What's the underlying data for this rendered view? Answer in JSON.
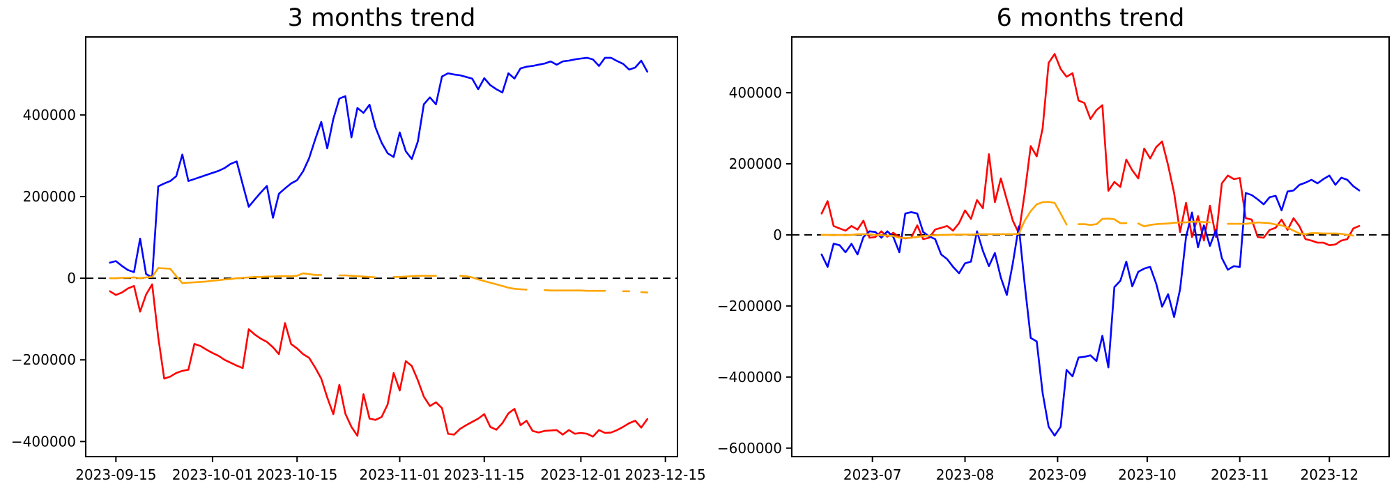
{
  "page": {
    "background": "#ffffff",
    "left_chart_title": "3 months trend",
    "right_chart_title": "6 months trend"
  },
  "colors": {
    "blue_series": "#0000ff",
    "red_series": "#ff0000",
    "orange_series": "#ffa500",
    "zero_line": "#000000",
    "axis": "#000000",
    "tick_text": "#000000"
  },
  "chart_data": [
    {
      "title": "3 months trend",
      "type": "line",
      "grid": false,
      "legend": "none",
      "x_start": "2023-09-14",
      "x_step_days": 1,
      "xlim": [
        "2023-09-10",
        "2023-12-17"
      ],
      "ylim": [
        -437000,
        591000
      ],
      "zero_line": {
        "value": 0,
        "style": "dashed",
        "color": "#000000"
      },
      "x_ticks": [
        {
          "date": "2023-09-15",
          "label": "2023-09-15"
        },
        {
          "date": "2023-10-01",
          "label": "2023-10-01"
        },
        {
          "date": "2023-10-15",
          "label": "2023-10-15"
        },
        {
          "date": "2023-11-01",
          "label": "2023-11-01"
        },
        {
          "date": "2023-11-15",
          "label": "2023-11-15"
        },
        {
          "date": "2023-12-01",
          "label": "2023-12-01"
        },
        {
          "date": "2023-12-15",
          "label": "2023-12-15"
        }
      ],
      "y_ticks": [
        {
          "value": -400000,
          "label": "−400000"
        },
        {
          "value": -200000,
          "label": "−200000"
        },
        {
          "value": 0,
          "label": "0"
        },
        {
          "value": 200000,
          "label": "200000"
        },
        {
          "value": 400000,
          "label": "400000"
        }
      ],
      "series": [
        {
          "name": "blue",
          "color_key": "blue_series",
          "values": [
            38000,
            42000,
            30000,
            20000,
            15000,
            97000,
            10000,
            2000,
            225000,
            232000,
            238000,
            250000,
            303000,
            238000,
            243000,
            248000,
            253000,
            258000,
            263000,
            270000,
            280000,
            286000,
            230000,
            175000,
            193000,
            210000,
            226000,
            148000,
            207000,
            220000,
            232000,
            240000,
            262000,
            294000,
            340000,
            383000,
            318000,
            390000,
            440000,
            446000,
            345000,
            417000,
            405000,
            425000,
            369000,
            332000,
            306000,
            297000,
            357000,
            311000,
            292000,
            335000,
            426000,
            443000,
            426000,
            494000,
            502000,
            499000,
            497000,
            493000,
            489000,
            463000,
            490000,
            473000,
            463000,
            455000,
            502000,
            489000,
            514000,
            518000,
            520000,
            523000,
            526000,
            531000,
            523000,
            531000,
            533000,
            536000,
            538000,
            540000,
            536000,
            520000,
            540000,
            540000,
            532000,
            525000,
            511000,
            516000,
            533000,
            506000
          ]
        },
        {
          "name": "red",
          "color_key": "red_series",
          "values": [
            -32000,
            -41000,
            -35000,
            -25000,
            -19000,
            -82000,
            -40000,
            -15000,
            -144000,
            -246000,
            -241000,
            -232000,
            -227000,
            -224000,
            -161000,
            -166000,
            -175000,
            -183000,
            -190000,
            -200000,
            -207000,
            -214000,
            -220000,
            -125000,
            -138000,
            -148000,
            -156000,
            -169000,
            -186000,
            -110000,
            -161000,
            -172000,
            -186000,
            -195000,
            -219000,
            -246000,
            -292000,
            -333000,
            -261000,
            -332000,
            -364000,
            -386000,
            -284000,
            -344000,
            -347000,
            -340000,
            -309000,
            -232000,
            -275000,
            -203000,
            -215000,
            -250000,
            -290000,
            -313000,
            -304000,
            -318000,
            -381000,
            -383000,
            -369000,
            -360000,
            -352000,
            -344000,
            -333000,
            -364000,
            -371000,
            -355000,
            -331000,
            -320000,
            -360000,
            -349000,
            -374000,
            -378000,
            -374000,
            -373000,
            -372000,
            -383000,
            -372000,
            -381000,
            -379000,
            -381000,
            -388000,
            -372000,
            -379000,
            -378000,
            -372000,
            -364000,
            -355000,
            -349000,
            -366000,
            -345000
          ]
        },
        {
          "name": "orange",
          "color_key": "orange_series",
          "values": [
            0,
            0,
            1000,
            1000,
            2000,
            0,
            2000,
            3000,
            25000,
            24000,
            23000,
            5000,
            -12000,
            -11000,
            -10000,
            -9000,
            -8000,
            -6000,
            -5000,
            -3000,
            -2000,
            0,
            1000,
            2000,
            3000,
            3000,
            4000,
            4000,
            5000,
            5000,
            5000,
            6000,
            12000,
            10000,
            8000,
            8000,
            null,
            null,
            7000,
            7000,
            6000,
            5000,
            4000,
            3000,
            2000,
            null,
            null,
            3000,
            3000,
            4000,
            5000,
            6000,
            6000,
            6000,
            6000,
            null,
            null,
            null,
            6000,
            5000,
            2000,
            -3000,
            -7000,
            -11000,
            -15000,
            -19000,
            -23000,
            -26000,
            -27000,
            -28000,
            null,
            null,
            -29000,
            -30000,
            -30000,
            -30000,
            -30000,
            -30000,
            -30000,
            -31000,
            -31000,
            -31000,
            -31000,
            null,
            null,
            -32000,
            -32000,
            null,
            -34000,
            -35000
          ]
        }
      ]
    },
    {
      "title": "6 months trend",
      "type": "line",
      "grid": false,
      "legend": "none",
      "x_start": "2023-06-14",
      "x_step_days": 2,
      "xlim": [
        "2023-06-04",
        "2023-12-21"
      ],
      "ylim": [
        -624000,
        557000
      ],
      "zero_line": {
        "value": 0,
        "style": "dashed",
        "color": "#000000"
      },
      "x_ticks": [
        {
          "date": "2023-07-01",
          "label": "2023-07"
        },
        {
          "date": "2023-08-01",
          "label": "2023-08"
        },
        {
          "date": "2023-09-01",
          "label": "2023-09"
        },
        {
          "date": "2023-10-01",
          "label": "2023-10"
        },
        {
          "date": "2023-11-01",
          "label": "2023-11"
        },
        {
          "date": "2023-12-01",
          "label": "2023-12"
        }
      ],
      "y_ticks": [
        {
          "value": -600000,
          "label": "−600000"
        },
        {
          "value": -400000,
          "label": "−400000"
        },
        {
          "value": -200000,
          "label": "−200000"
        },
        {
          "value": 0,
          "label": "0"
        },
        {
          "value": 200000,
          "label": "200000"
        },
        {
          "value": 400000,
          "label": "400000"
        }
      ],
      "series": [
        {
          "name": "red",
          "color_key": "red_series",
          "values": [
            60000,
            95000,
            25000,
            18000,
            12000,
            25000,
            15000,
            40000,
            -8000,
            -6000,
            10000,
            -5000,
            6000,
            -6000,
            -10000,
            -8000,
            27000,
            -12000,
            -8000,
            15000,
            20000,
            25000,
            12000,
            33000,
            69000,
            45000,
            98000,
            75000,
            227000,
            92000,
            159000,
            99000,
            40000,
            5000,
            118000,
            250000,
            221000,
            300000,
            484000,
            509000,
            467000,
            445000,
            455000,
            378000,
            371000,
            326000,
            351000,
            365000,
            124000,
            149000,
            135000,
            212000,
            182000,
            159000,
            243000,
            215000,
            247000,
            263000,
            196000,
            118000,
            8000,
            90000,
            -6000,
            53000,
            -16000,
            82000,
            -6000,
            145000,
            167000,
            157000,
            160000,
            47000,
            43000,
            -6000,
            -8000,
            14000,
            20000,
            43000,
            14000,
            47000,
            24000,
            -12000,
            -16000,
            -22000,
            -22000,
            -29000,
            -27000,
            -16000,
            -12000,
            18000,
            25000
          ]
        },
        {
          "name": "blue",
          "color_key": "blue_series",
          "values": [
            -55000,
            -90000,
            -25000,
            -29000,
            -49000,
            -25000,
            -55000,
            -6000,
            10000,
            8000,
            -8000,
            10000,
            -6000,
            -49000,
            60000,
            64000,
            60000,
            8000,
            -4000,
            -12000,
            -55000,
            -68000,
            -90000,
            -108000,
            -80000,
            -75000,
            10000,
            -45000,
            -88000,
            -51000,
            -120000,
            -169000,
            -80000,
            24000,
            -140000,
            -290000,
            -300000,
            -445000,
            -540000,
            -565000,
            -540000,
            -380000,
            -398000,
            -345000,
            -343000,
            -339000,
            -355000,
            -284000,
            -373000,
            -147000,
            -129000,
            -75000,
            -145000,
            -104000,
            -95000,
            -90000,
            -137000,
            -202000,
            -167000,
            -231000,
            -153000,
            -6000,
            63000,
            -35000,
            27000,
            -31000,
            14000,
            -65000,
            -98000,
            -88000,
            -90000,
            118000,
            112000,
            100000,
            86000,
            106000,
            110000,
            69000,
            122000,
            125000,
            141000,
            147000,
            155000,
            145000,
            157000,
            167000,
            141000,
            161000,
            155000,
            137000,
            125000
          ]
        },
        {
          "name": "orange",
          "color_key": "orange_series",
          "values": [
            0,
            0,
            -1000,
            0,
            -1000,
            0,
            2000,
            2000,
            2000,
            0,
            -1000,
            -2000,
            -3000,
            -8000,
            -9000,
            -8000,
            -6000,
            -3000,
            -2000,
            -1000,
            0,
            0,
            1000,
            1000,
            1000,
            1000,
            2000,
            2000,
            2000,
            2000,
            2000,
            2000,
            2000,
            3000,
            40000,
            67000,
            86000,
            92000,
            93000,
            90000,
            60000,
            29000,
            null,
            30000,
            30000,
            28000,
            30000,
            45000,
            46000,
            44000,
            33000,
            33000,
            null,
            32000,
            24000,
            28000,
            30000,
            31000,
            32000,
            34000,
            35000,
            35000,
            37000,
            37000,
            36000,
            35000,
            null,
            null,
            31000,
            31000,
            31000,
            31000,
            33000,
            35000,
            34000,
            33000,
            29000,
            27000,
            20000,
            12000,
            4000,
            2000,
            5000,
            5000,
            4000,
            4000,
            4000,
            3000,
            0,
            -2000,
            null
          ]
        }
      ]
    }
  ]
}
